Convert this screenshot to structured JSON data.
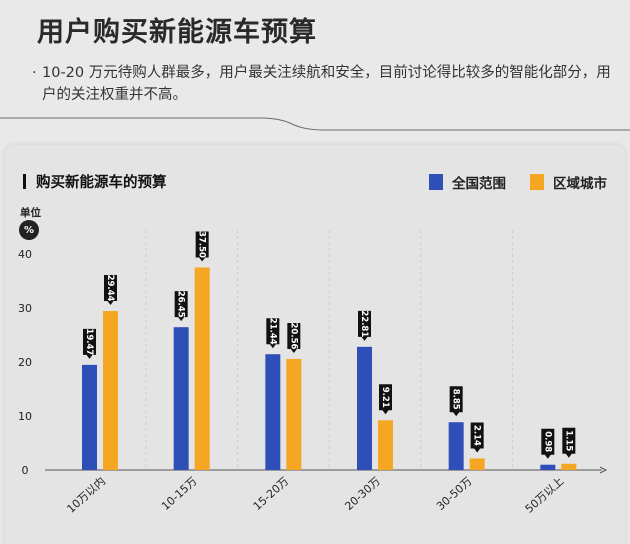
{
  "header": {
    "title": "用户购买新能源车预算",
    "bullet": "·",
    "summary": "10-20 万元待购人群最多，用户最关注续航和安全，目前讨论得比较多的智能化部分，用户的关注权重并不高。"
  },
  "colors": {
    "national": "#2f4fb8",
    "regional": "#f5a623",
    "text": "#222222",
    "background": "#e9e9e9",
    "card": "#e4e4e4"
  },
  "chart_data": {
    "type": "bar",
    "title": "购买新能源车的预算",
    "unit_label": "单位",
    "unit_symbol": "%",
    "categories": [
      "10万以内",
      "10-15万",
      "15-20万",
      "20-30万",
      "30-50万",
      "50万以上"
    ],
    "series": [
      {
        "name": "全国范围",
        "values": [
          19.47,
          26.45,
          21.44,
          22.81,
          8.85,
          0.98
        ],
        "labels": [
          "19.47",
          "26.45",
          "21.44",
          "22.81",
          "8.85",
          "0.98"
        ],
        "color": "#2f4fb8"
      },
      {
        "name": "区域城市",
        "values": [
          29.44,
          37.5,
          20.56,
          9.21,
          2.14,
          1.15
        ],
        "labels": [
          "29.44",
          "37.50",
          "20.56",
          "9.21",
          "2.14",
          "1.15"
        ],
        "color": "#f5a623"
      }
    ],
    "y_ticks": [
      0,
      10,
      20,
      30,
      40
    ],
    "ylim": [
      0,
      40
    ],
    "grid": false,
    "legend_position": "top-right"
  }
}
